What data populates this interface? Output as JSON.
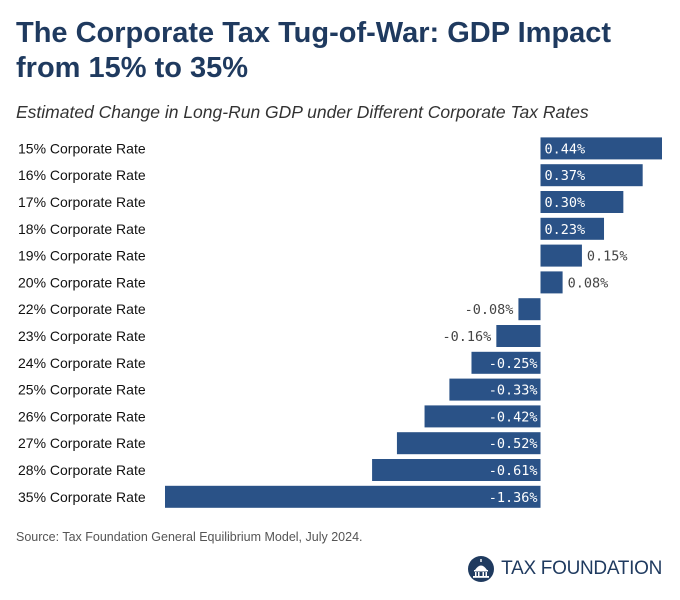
{
  "header": {
    "title": "The Corporate Tax Tug-of-War: GDP Impact from 15% to 35%",
    "subtitle": "Estimated Change in Long-Run GDP under Different Corporate Tax Rates"
  },
  "footer": {
    "source": "Source: Tax Foundation General Equilibrium Model, July 2024.",
    "brand": "TAX FOUNDATION"
  },
  "colors": {
    "bar": "#2a5287",
    "title": "#1f3a5f"
  },
  "chart_data": {
    "type": "bar",
    "orientation": "horizontal",
    "title": "The Corporate Tax Tug-of-War: GDP Impact from 15% to 35%",
    "subtitle": "Estimated Change in Long-Run GDP under Different Corporate Tax Rates",
    "categories": [
      "15% Corporate Rate",
      "16% Corporate Rate",
      "17% Corporate Rate",
      "18% Corporate Rate",
      "19% Corporate Rate",
      "20% Corporate Rate",
      "22% Corporate Rate",
      "23% Corporate Rate",
      "24% Corporate Rate",
      "25% Corporate Rate",
      "26% Corporate Rate",
      "27% Corporate Rate",
      "28% Corporate Rate",
      "35% Corporate Rate"
    ],
    "values": [
      0.44,
      0.37,
      0.3,
      0.23,
      0.15,
      0.08,
      -0.08,
      -0.16,
      -0.25,
      -0.33,
      -0.42,
      -0.52,
      -0.61,
      -1.36
    ],
    "value_labels": [
      "0.44%",
      "0.37%",
      "0.30%",
      "0.23%",
      "0.15%",
      "0.08%",
      "-0.08%",
      "-0.16%",
      "-0.25%",
      "-0.33%",
      "-0.42%",
      "-0.52%",
      "-0.61%",
      "-1.36%"
    ],
    "unit": "%",
    "xlim": [
      -1.36,
      0.44
    ],
    "xlabel": "",
    "ylabel": "",
    "grid": false
  }
}
